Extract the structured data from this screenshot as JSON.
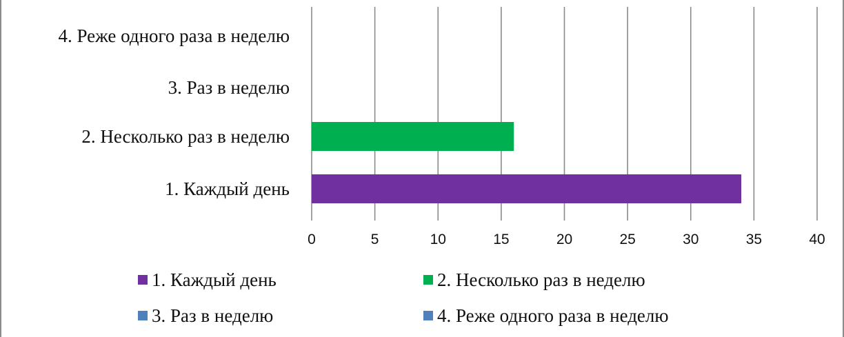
{
  "chart_data": {
    "type": "bar",
    "orientation": "horizontal",
    "categories": [
      "1. Каждый день",
      "2. Несколько раз в неделю",
      "3. Раз в неделю",
      "4. Реже одного раза в неделю"
    ],
    "values": [
      34,
      16,
      0,
      0
    ],
    "colors": [
      "#7030a0",
      "#00b050",
      "#4f81bd",
      "#4f81bd"
    ],
    "xlim": [
      0,
      40
    ],
    "xticks": [
      "0",
      "5",
      "10",
      "15",
      "20",
      "25",
      "30",
      "35",
      "40"
    ],
    "grid": true,
    "legend_position": "bottom",
    "legend": [
      {
        "label": "1. Каждый день",
        "color": "#7030a0"
      },
      {
        "label": "2. Несколько раз в неделю",
        "color": "#00b050"
      },
      {
        "label": "3. Раз в неделю",
        "color": "#4f81bd"
      },
      {
        "label": "4. Реже одного раза в неделю",
        "color": "#4f81bd"
      }
    ]
  }
}
